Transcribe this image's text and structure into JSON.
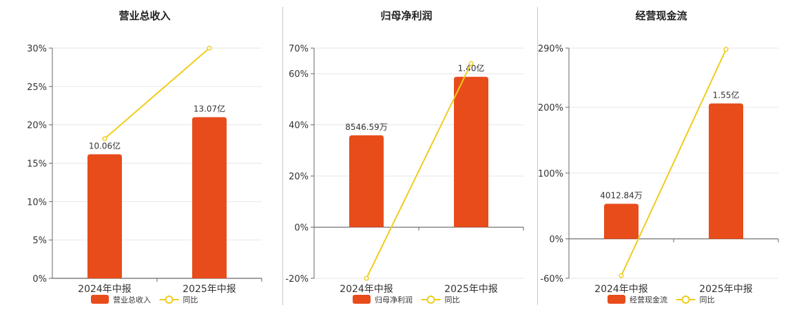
{
  "colors": {
    "bar": "#e84c1a",
    "line": "#f0cc1c",
    "grid": "#e6e6e6",
    "axis": "#666666"
  },
  "chart_data": [
    {
      "type": "bar",
      "title": "营业总收入",
      "categories": [
        "2024年中报",
        "2025年中报"
      ],
      "series": [
        {
          "name": "营业总收入",
          "type": "bar",
          "values": [
            10.06,
            13.07
          ],
          "labels": [
            "10.06亿",
            "13.07亿"
          ]
        },
        {
          "name": "同比",
          "type": "line",
          "values": [
            18.2,
            30.0
          ]
        }
      ],
      "ylim": [
        0,
        30
      ],
      "yticks": [
        0,
        5,
        10,
        15,
        20,
        25,
        30
      ],
      "ytick_labels": [
        "0%",
        "5%",
        "10%",
        "15%",
        "20%",
        "25%",
        "30%"
      ],
      "grid": true,
      "legend": "bottom"
    },
    {
      "type": "bar",
      "title": "归母净利润",
      "categories": [
        "2024年中报",
        "2025年中报"
      ],
      "series": [
        {
          "name": "归母净利润",
          "type": "bar",
          "values": [
            0.8547,
            1.4
          ],
          "labels": [
            "8546.59万",
            "1.40亿"
          ]
        },
        {
          "name": "同比",
          "type": "line",
          "values": [
            -20,
            64
          ]
        }
      ],
      "ylim": [
        -20,
        70
      ],
      "yticks": [
        -20,
        0,
        20,
        40,
        60,
        70
      ],
      "ytick_labels": [
        "-20%",
        "0%",
        "20%",
        "40%",
        "60%",
        "70%"
      ],
      "grid": true,
      "legend": "bottom"
    },
    {
      "type": "bar",
      "title": "经营现金流",
      "categories": [
        "2024年中报",
        "2025年中报"
      ],
      "series": [
        {
          "name": "经营现金流",
          "type": "bar",
          "values": [
            0.4013,
            1.55
          ],
          "labels": [
            "4012.84万",
            "1.55亿"
          ]
        },
        {
          "name": "同比",
          "type": "line",
          "values": [
            -56,
            288
          ]
        }
      ],
      "ylim": [
        -60,
        290
      ],
      "yticks": [
        -60,
        0,
        100,
        200,
        290
      ],
      "ytick_labels": [
        "-60%",
        "0%",
        "100%",
        "200%",
        "290%"
      ],
      "grid": true,
      "legend": "bottom"
    }
  ]
}
